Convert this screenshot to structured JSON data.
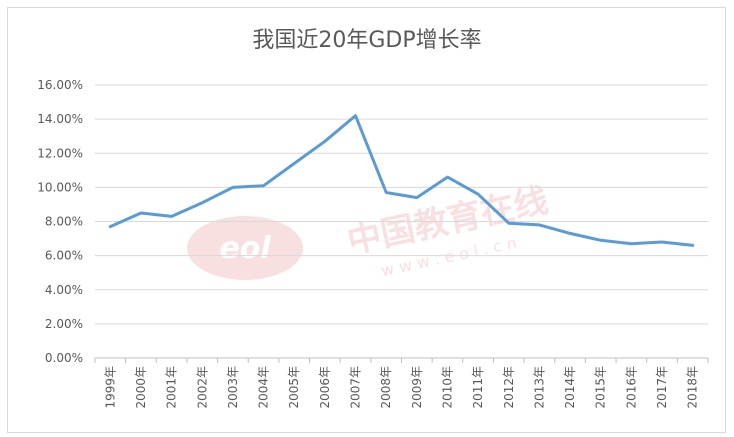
{
  "chart_data": {
    "type": "line",
    "title": "我国近20年GDP增长率",
    "categories": [
      "1999年",
      "2000年",
      "2001年",
      "2002年",
      "2003年",
      "2004年",
      "2005年",
      "2006年",
      "2007年",
      "2008年",
      "2009年",
      "2010年",
      "2011年",
      "2012年",
      "2013年",
      "2014年",
      "2015年",
      "2016年",
      "2017年",
      "2018年"
    ],
    "series": [
      {
        "values": [
          7.7,
          8.5,
          8.3,
          9.1,
          10.0,
          10.1,
          11.4,
          12.7,
          14.2,
          9.7,
          9.4,
          10.6,
          9.6,
          7.9,
          7.8,
          7.3,
          6.9,
          6.7,
          6.8,
          6.6
        ]
      }
    ],
    "yticks": [
      "0.00%",
      "2.00%",
      "4.00%",
      "6.00%",
      "8.00%",
      "10.00%",
      "12.00%",
      "14.00%",
      "16.00%"
    ],
    "ylim": [
      0,
      16
    ],
    "grid": true,
    "line_color": "#5b9bd5"
  },
  "watermark": {
    "text": "中国教育在线",
    "url": "w w w . e o l . c n",
    "logo": "eol"
  }
}
